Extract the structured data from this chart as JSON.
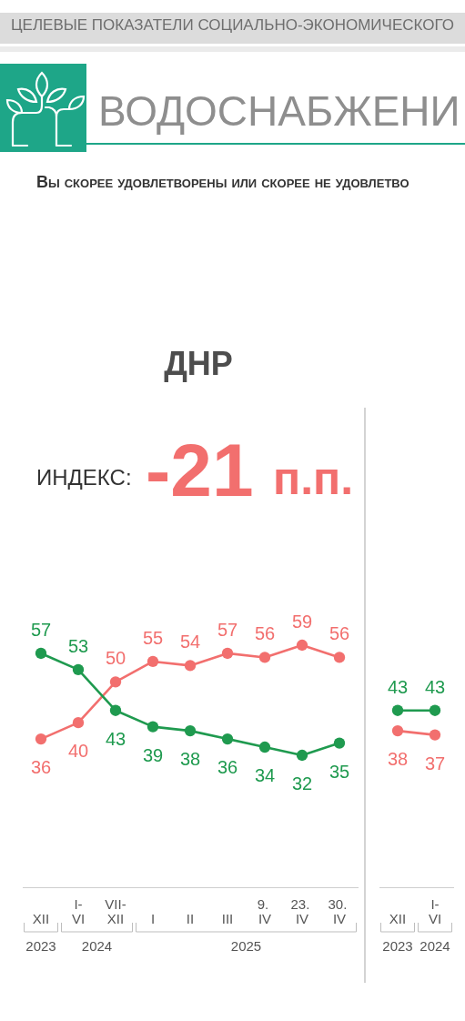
{
  "chart_data": [
    {
      "type": "line",
      "title": "ДНР",
      "annotations": [
        "ЦЕЛЕВЫЕ ПОКАЗАТЕЛИ СОЦИАЛЬНО-ЭКОНОМИЧЕСКОГО",
        "ВОДОСНАБЖЕНИ",
        "Вы скорее удовлетворены или скорее не удовлетво",
        "ИНДЕКС:",
        "-21",
        "п.п.",
        "2023",
        "2024",
        "2025"
      ],
      "categories": [
        "XII",
        "I-VI",
        "VII-XII",
        "I",
        "II",
        "III",
        "9. IV",
        "23. IV",
        "30. IV"
      ],
      "series": [
        {
          "color": "#f26f6e",
          "values": [
            36,
            40,
            50,
            55,
            54,
            57,
            56,
            59,
            56
          ]
        },
        {
          "color": "#1f9a4f",
          "values": [
            57,
            53,
            43,
            39,
            38,
            36,
            34,
            32,
            35
          ]
        }
      ],
      "data_labels": true,
      "marker": "circle",
      "tick_labels": "x"
    },
    {
      "type": "line",
      "annotations": [
        "2023",
        "2024"
      ],
      "categories": [
        "XII",
        "I-VI"
      ],
      "series": [
        {
          "color": "#f26f6e",
          "values": [
            38,
            37
          ]
        },
        {
          "color": "#1f9a4f",
          "values": [
            43,
            43
          ]
        }
      ],
      "data_labels": true,
      "marker": "circle",
      "tick_labels": "x"
    }
  ]
}
